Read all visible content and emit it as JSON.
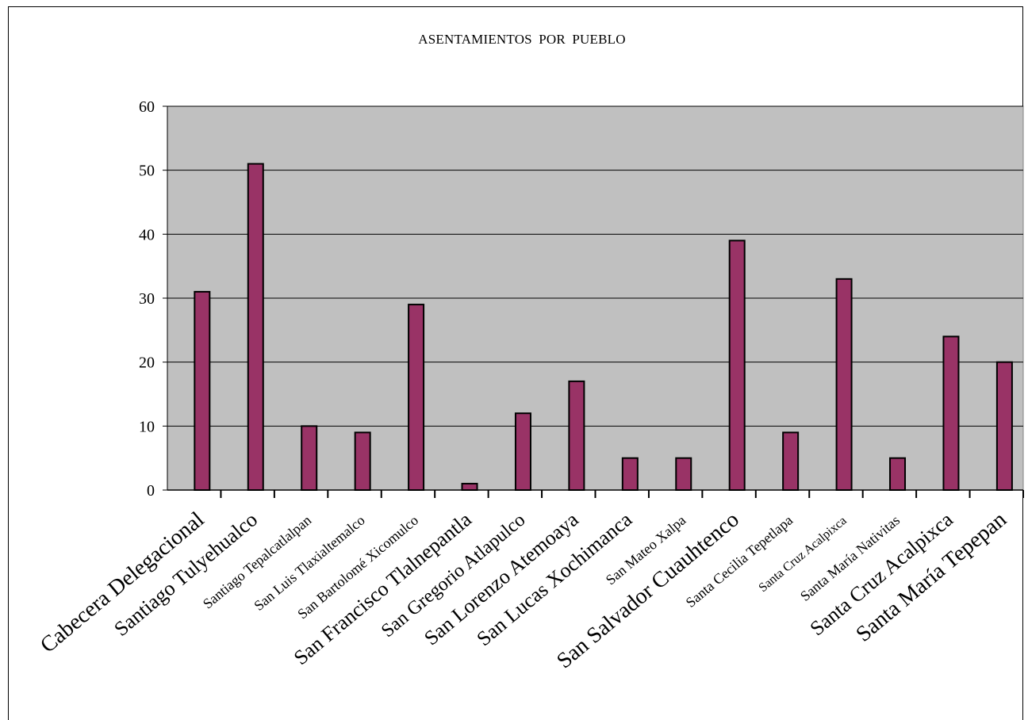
{
  "chart_data": {
    "type": "bar",
    "title": "ASENTAMIENTOS  POR   PUEBLO",
    "xlabel": "",
    "ylabel": "",
    "ylim": [
      0,
      60
    ],
    "yticks": [
      0,
      10,
      20,
      30,
      40,
      50,
      60
    ],
    "grid": true,
    "legend": "none",
    "categories": [
      "Cabecera Delegacional",
      "Santiago Tulyehualco",
      "Santiago Tepalcatlalpan",
      "San Luis Tlaxialtemalco",
      "San Bartolomé Xicomulco",
      "San Francisco Tlalnepantla",
      "San Gregorio Atlapulco",
      "San Lorenzo Atemoaya",
      "San Lucas Xochimanca",
      "San Mateo Xalpa",
      "San Salvador Cuauhtenco",
      "Santa Cecilia Tepetlapa",
      "Santa Cruz Acalpixca",
      "Santa María Nativitas",
      "Santa Cruz Acalpixca",
      "Santa María Tepepan"
    ],
    "values": [
      31,
      51,
      10,
      9,
      29,
      1,
      12,
      17,
      5,
      5,
      39,
      9,
      33,
      5,
      24,
      20
    ],
    "colors": {
      "bar": "#993366",
      "plot_bg": "#c0c0c0",
      "grid": "#000000"
    }
  }
}
